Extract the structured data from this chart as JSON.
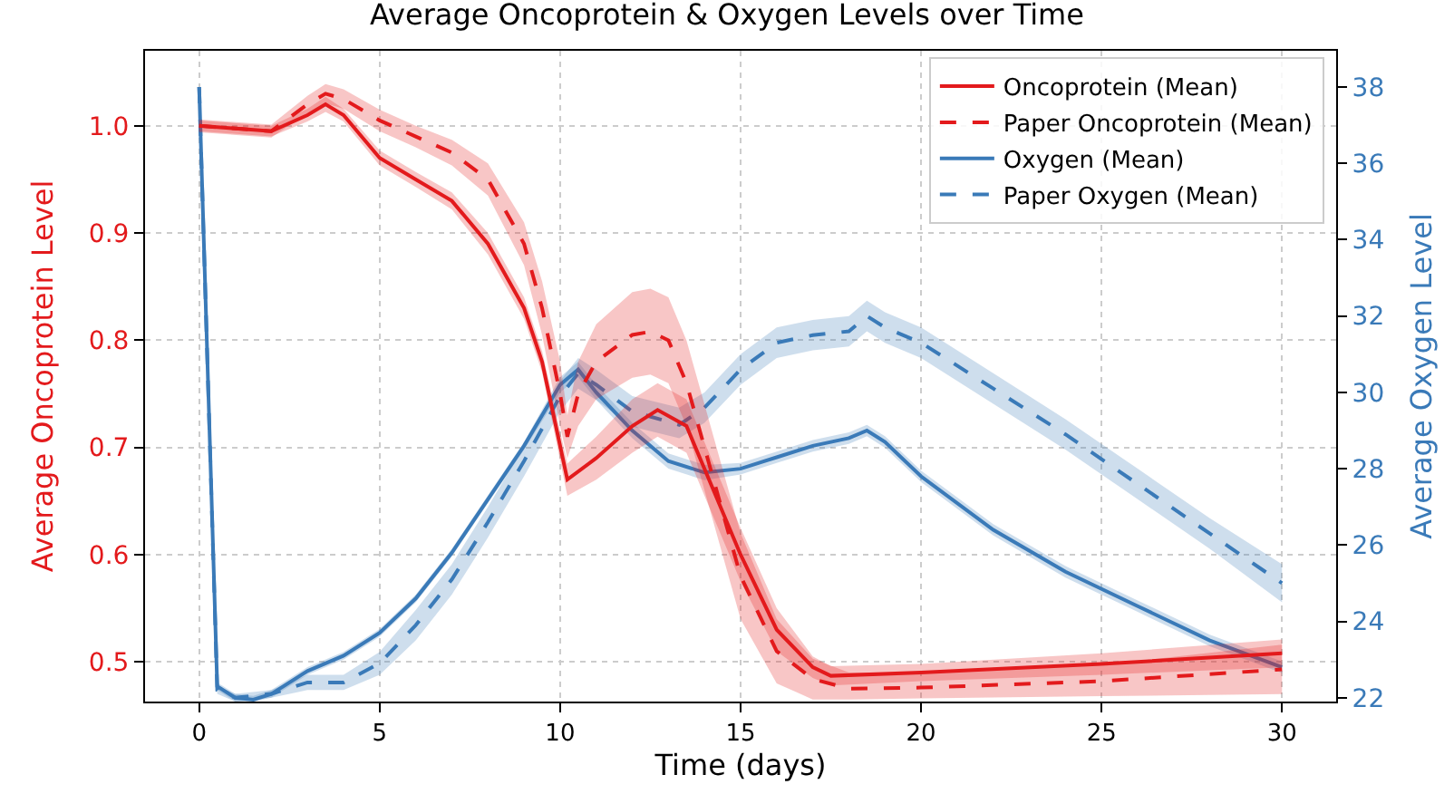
{
  "chart_data": {
    "type": "line",
    "title": "Average Oncoprotein & Oxygen Levels over Time",
    "xlabel": "Time (days)",
    "ylabel": "Average Oncoprotein Level",
    "y2label": "Average Oxygen Level",
    "xlim": [
      -1.5,
      31.5
    ],
    "xticks": [
      0,
      5,
      10,
      15,
      20,
      25,
      30
    ],
    "ylim": [
      0.463,
      1.07
    ],
    "yticks": [
      0.5,
      0.6,
      0.7,
      0.8,
      0.9,
      {
        "value": 1.0,
        "label": "1.0"
      }
    ],
    "y2lim": [
      21.9,
      38.95
    ],
    "y2ticks": [
      22,
      24,
      26,
      28,
      30,
      32,
      34,
      36,
      38
    ],
    "grid": true,
    "legend": "top right",
    "marker": "none",
    "series": [
      {
        "name": "Oncoprotein (Mean)",
        "color": "#e31a1c",
        "line_style": "solid",
        "x": [
          0,
          2,
          3,
          3.5,
          4,
          5,
          6,
          7,
          8,
          9,
          9.5,
          10.2,
          11,
          12,
          12.7,
          13.5,
          14,
          15,
          16,
          17,
          17.5,
          20,
          25,
          30
        ],
        "values": [
          1.0,
          0.995,
          1.01,
          1.02,
          1.01,
          0.97,
          0.95,
          0.93,
          0.89,
          0.83,
          0.78,
          0.67,
          0.69,
          0.72,
          0.735,
          0.72,
          0.68,
          0.6,
          0.53,
          0.495,
          0.487,
          0.49,
          0.498,
          0.508
        ],
        "lower": [
          0.995,
          0.99,
          1.004,
          1.013,
          1.004,
          0.963,
          0.943,
          0.922,
          0.88,
          0.82,
          0.77,
          0.655,
          0.67,
          0.695,
          0.71,
          0.695,
          0.655,
          0.575,
          0.51,
          0.485,
          0.478,
          0.482,
          0.488,
          0.495
        ],
        "upper": [
          1.005,
          1.0,
          1.016,
          1.027,
          1.016,
          0.977,
          0.957,
          0.938,
          0.9,
          0.84,
          0.79,
          0.685,
          0.71,
          0.745,
          0.76,
          0.745,
          0.705,
          0.625,
          0.55,
          0.505,
          0.496,
          0.498,
          0.508,
          0.521
        ]
      },
      {
        "name": "Paper Oncoprotein (Mean)",
        "color": "#e31a1c",
        "line_style": "dashed",
        "x": [
          0,
          2,
          3,
          3.5,
          4,
          5,
          6,
          7,
          8,
          9,
          9.5,
          10,
          10.2,
          10.5,
          11,
          12,
          12.5,
          13,
          13.5,
          14,
          15,
          16,
          17,
          18,
          20,
          25,
          30
        ],
        "values": [
          1.0,
          0.995,
          1.02,
          1.03,
          1.025,
          1.005,
          0.99,
          0.975,
          0.95,
          0.89,
          0.83,
          0.75,
          0.71,
          0.75,
          0.78,
          0.805,
          0.808,
          0.8,
          0.76,
          0.7,
          0.58,
          0.51,
          0.484,
          0.475,
          0.476,
          0.482,
          0.493
        ],
        "lower": [
          0.994,
          0.989,
          1.012,
          1.021,
          1.016,
          0.995,
          0.98,
          0.963,
          0.935,
          0.87,
          0.805,
          0.72,
          0.69,
          0.72,
          0.745,
          0.765,
          0.768,
          0.76,
          0.72,
          0.66,
          0.54,
          0.48,
          0.465,
          0.465,
          0.466,
          0.468,
          0.47
        ],
        "upper": [
          1.006,
          1.001,
          1.028,
          1.039,
          1.034,
          1.015,
          1.0,
          0.987,
          0.965,
          0.91,
          0.855,
          0.78,
          0.73,
          0.78,
          0.815,
          0.845,
          0.848,
          0.84,
          0.8,
          0.74,
          0.62,
          0.54,
          0.503,
          0.49,
          0.49,
          0.497,
          0.516
        ]
      },
      {
        "name": "Oxygen (Mean)",
        "color": "#3a7ab8",
        "line_style": "solid",
        "axis": "y2",
        "x": [
          0,
          0.5,
          1,
          1.5,
          2,
          3,
          4,
          5,
          6,
          7,
          8,
          9,
          10,
          10.5,
          11,
          12,
          13,
          14,
          15,
          16,
          17,
          18,
          18.5,
          19,
          20,
          22,
          24,
          26,
          28,
          30
        ],
        "values": [
          38,
          22.3,
          22.0,
          21.95,
          22.1,
          22.7,
          23.1,
          23.7,
          24.6,
          25.8,
          27.2,
          28.6,
          30.2,
          30.6,
          30.0,
          29.0,
          28.2,
          27.9,
          28.0,
          28.3,
          28.6,
          28.8,
          29.0,
          28.7,
          27.8,
          26.4,
          25.3,
          24.4,
          23.5,
          22.8
        ],
        "lower": [
          null,
          22.2,
          21.9,
          21.9,
          22.0,
          22.6,
          23.0,
          23.6,
          24.5,
          25.7,
          27.1,
          28.5,
          30.0,
          30.4,
          29.8,
          28.8,
          28.0,
          27.7,
          27.85,
          28.15,
          28.45,
          28.65,
          28.85,
          28.55,
          27.65,
          26.25,
          25.15,
          24.25,
          23.35,
          22.65
        ],
        "upper": [
          null,
          22.4,
          22.1,
          22.05,
          22.2,
          22.8,
          23.2,
          23.8,
          24.7,
          25.9,
          27.3,
          28.7,
          30.4,
          30.8,
          30.2,
          29.2,
          28.4,
          28.1,
          28.15,
          28.45,
          28.75,
          28.95,
          29.15,
          28.85,
          27.95,
          26.55,
          25.45,
          24.55,
          23.65,
          22.95
        ]
      },
      {
        "name": "Paper Oxygen (Mean)",
        "color": "#3a7ab8",
        "line_style": "dashed",
        "axis": "y2",
        "x": [
          0,
          0.5,
          1,
          2,
          3,
          4,
          5,
          6,
          7,
          8,
          9,
          10,
          10.5,
          11,
          12,
          13.3,
          14,
          15,
          16,
          17,
          18,
          18.5,
          19,
          20,
          22,
          24,
          26,
          28,
          30
        ],
        "values": [
          38,
          22.2,
          22.0,
          22.1,
          22.4,
          22.4,
          22.9,
          23.9,
          25.1,
          26.6,
          28.2,
          29.9,
          30.5,
          30.2,
          29.5,
          29.15,
          29.6,
          30.6,
          31.3,
          31.5,
          31.6,
          32.0,
          31.7,
          31.3,
          30.1,
          28.9,
          27.6,
          26.3,
          25.0
        ],
        "lower": [
          null,
          22.1,
          21.9,
          22.0,
          22.2,
          22.2,
          22.6,
          23.5,
          24.7,
          26.2,
          27.8,
          29.5,
          30.1,
          29.8,
          29.1,
          28.8,
          29.2,
          30.2,
          30.9,
          31.1,
          31.2,
          31.6,
          31.3,
          30.9,
          29.7,
          28.5,
          27.2,
          25.9,
          24.5
        ],
        "upper": [
          null,
          22.3,
          22.1,
          22.2,
          22.6,
          22.6,
          23.2,
          24.3,
          25.5,
          27.0,
          28.6,
          30.3,
          30.9,
          30.6,
          29.9,
          29.6,
          30.0,
          31.0,
          31.7,
          31.9,
          32.0,
          32.4,
          32.1,
          31.7,
          30.5,
          29.3,
          28.0,
          26.7,
          25.5
        ]
      }
    ]
  }
}
